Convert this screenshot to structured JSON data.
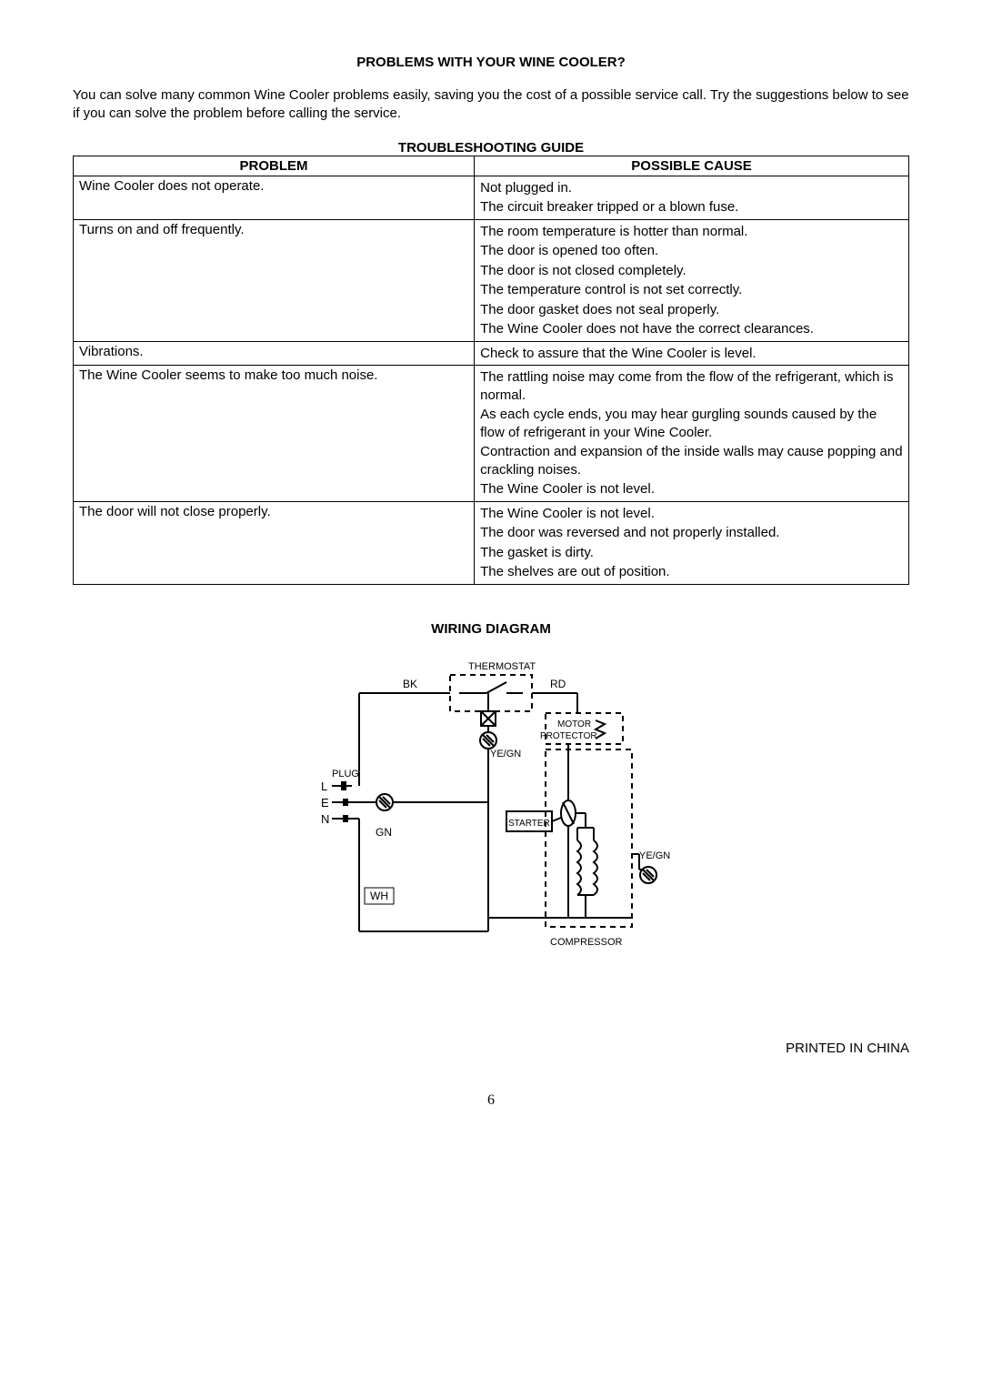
{
  "sectionTitle": "PROBLEMS WITH YOUR WINE COOLER?",
  "intro": "You can solve many common Wine Cooler problems easily, saving you the cost of a possible service call. Try the suggestions below to see if you can solve the problem before calling the service.",
  "tableTitle": "TROUBLESHOOTING GUIDE",
  "table": {
    "headers": {
      "problem": "PROBLEM",
      "cause": "POSSIBLE CAUSE"
    },
    "rows": [
      {
        "problem": "Wine Cooler does not operate.",
        "causes": [
          "Not plugged in.",
          "The circuit breaker tripped or a blown fuse."
        ]
      },
      {
        "problem": "Turns on and off frequently.",
        "causes": [
          "The room temperature is hotter than normal.",
          "The door is opened too often.",
          "The door is not closed completely.",
          "The temperature control is not set correctly.",
          "The door gasket does not seal properly.",
          "The Wine Cooler does not have the correct clearances."
        ]
      },
      {
        "problem": "Vibrations.",
        "causes": [
          "Check to assure that the Wine Cooler is level."
        ]
      },
      {
        "problem": "The Wine Cooler seems to make too much noise.",
        "causes": [
          "The rattling noise may come from the flow of the refrigerant, which is normal.",
          "As each cycle ends, you may hear gurgling sounds caused by the flow of refrigerant in your Wine Cooler.",
          "Contraction and expansion of the inside walls may cause popping and crackling noises.",
          "The Wine Cooler is not level."
        ]
      },
      {
        "problem": "The door will not close properly.",
        "causes": [
          "The Wine Cooler is not level.",
          "The door was reversed and not properly installed.",
          "The gasket is dirty.",
          "The shelves are out of position."
        ]
      }
    ]
  },
  "wiringTitle": "WIRING DIAGRAM",
  "diagram": {
    "labels": {
      "thermostat": "THERMOSTAT",
      "bk": "BK",
      "rd": "RD",
      "motor": "MOTOR",
      "protector": "PROTECTOR",
      "yegn1": "YE/GN",
      "plug": "PLUG",
      "l": "L",
      "e": "E",
      "n": "N",
      "gn": "GN",
      "starter": "STARTER",
      "yegn2": "YE/GN",
      "wh": "WH",
      "compressor": "COMPRESSOR"
    },
    "colors": {
      "line": "#000000",
      "bg": "#ffffff"
    }
  },
  "printed": "PRINTED IN CHINA",
  "pageNum": "6"
}
